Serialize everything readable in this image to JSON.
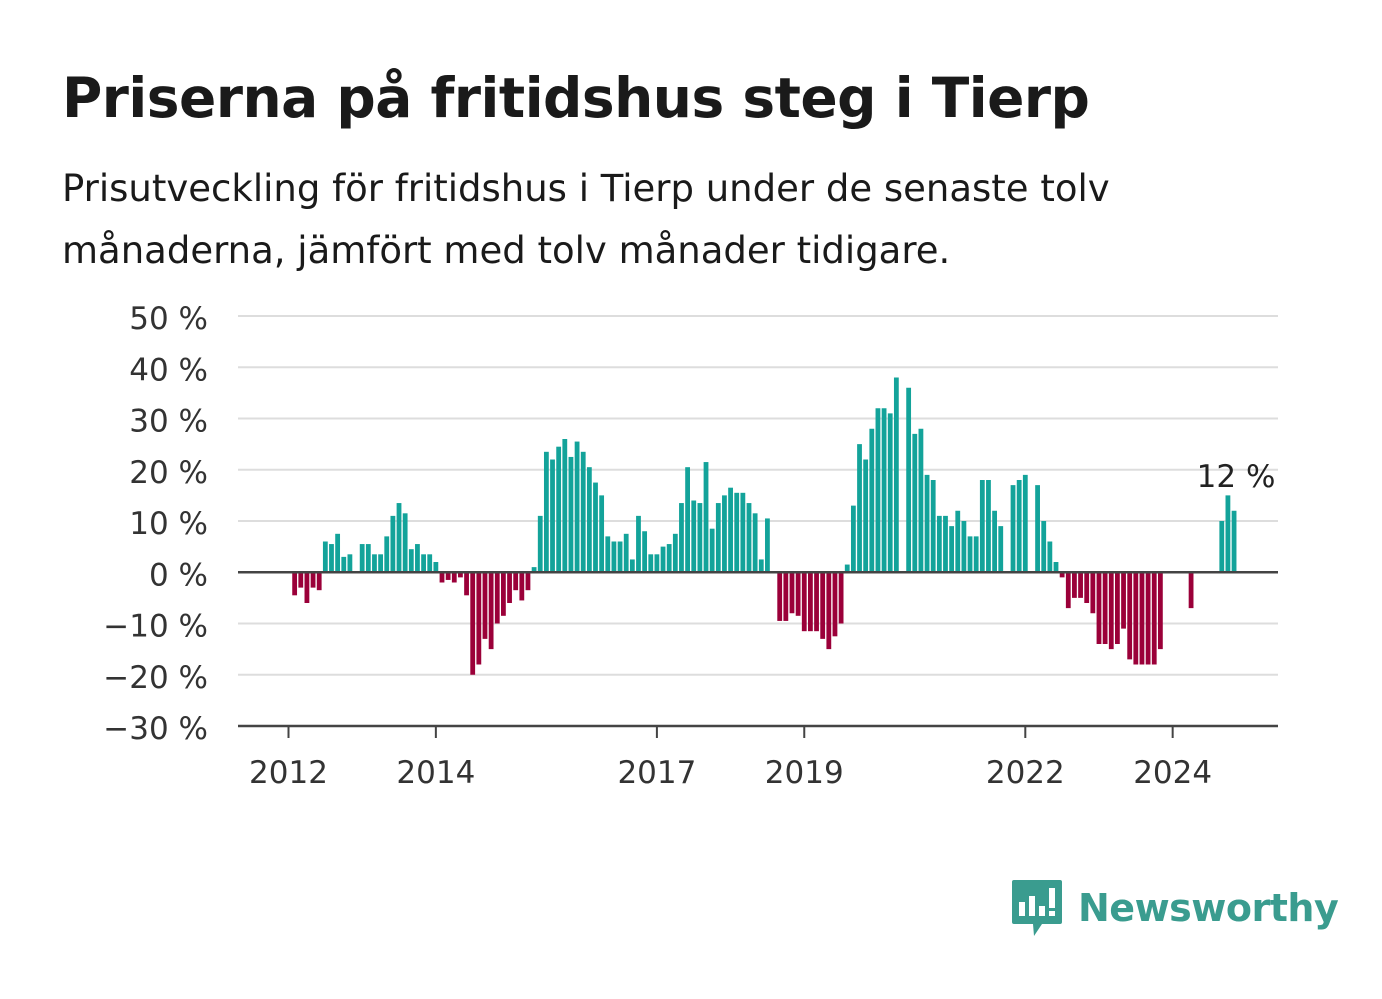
{
  "title": "Priserna på fritidshus steg i Tierp",
  "subtitle": "Prisutveckling för fritidshus i Tierp under de senaste tolv månaderna, jämfört med tolv månader tidigare.",
  "brand": {
    "name": "Newsworthy",
    "logo_icon": "bar-chart-speech-bubble-icon",
    "color": "#3a9c8f"
  },
  "colors": {
    "positive": "#13a39a",
    "negative": "#9b0039",
    "grid": "#dddddd",
    "axis": "#444444",
    "text": "#333333"
  },
  "chart_data": {
    "type": "bar",
    "title": "",
    "xlabel": "",
    "ylabel": "",
    "ylim": [
      -30,
      50
    ],
    "y_ticks": [
      50,
      40,
      30,
      20,
      10,
      0,
      -10,
      -20,
      -30
    ],
    "y_tick_labels": [
      "50 %",
      "40 %",
      "30 %",
      "20 %",
      "10 %",
      "0 %",
      "−10 %",
      "−20 %",
      "−30 %"
    ],
    "x_ticks": [
      {
        "label": "2012",
        "month_index": 0
      },
      {
        "label": "2014",
        "month_index": 24
      },
      {
        "label": "2017",
        "month_index": 60
      },
      {
        "label": "2019",
        "month_index": 84
      },
      {
        "label": "2022",
        "month_index": 120
      },
      {
        "label": "2024",
        "month_index": 144
      }
    ],
    "start": "2012-01",
    "frequency": "monthly",
    "annotation": {
      "text": "12 %",
      "value": 12
    },
    "values": [
      null,
      -4.5,
      -3,
      -6,
      -3,
      -3.5,
      6,
      5.5,
      7.5,
      3,
      3.5,
      null,
      5.5,
      5.5,
      3.5,
      3.5,
      7,
      11,
      13.5,
      11.5,
      4.5,
      5.5,
      3.5,
      3.5,
      2,
      -2,
      -1.5,
      -2,
      -1,
      -4.5,
      -20,
      -18,
      -13,
      -15,
      -10,
      -8.5,
      -6,
      -3.5,
      -5.5,
      -3.5,
      1,
      11,
      23.5,
      22,
      24.5,
      26,
      22.5,
      25.5,
      23.5,
      20.5,
      17.5,
      15,
      7,
      6,
      6,
      7.5,
      2.5,
      11,
      8,
      3.5,
      3.5,
      5,
      5.5,
      7.5,
      13.5,
      20.5,
      14,
      13.5,
      21.5,
      8.5,
      13.5,
      15,
      16.5,
      15.5,
      15.5,
      13.5,
      11.5,
      2.5,
      10.5,
      null,
      -9.5,
      -9.5,
      -8,
      -8.5,
      -11.5,
      -11.5,
      -11.5,
      -13,
      -15,
      -12.5,
      -10,
      1.5,
      13,
      25,
      22,
      28,
      32,
      32,
      31,
      38,
      null,
      36,
      27,
      28,
      19,
      18,
      11,
      11,
      9,
      12,
      10,
      7,
      7,
      18,
      18,
      12,
      9,
      null,
      17,
      18,
      19,
      null,
      17,
      10,
      6,
      2,
      -1,
      -7,
      -5,
      -5,
      -6,
      -8,
      -14,
      -14,
      -15,
      -14,
      -11,
      -17,
      -18,
      -18,
      -18,
      -18,
      -15,
      null,
      null,
      null,
      null,
      -7,
      null,
      null,
      null,
      null,
      10,
      15,
      12
    ]
  }
}
